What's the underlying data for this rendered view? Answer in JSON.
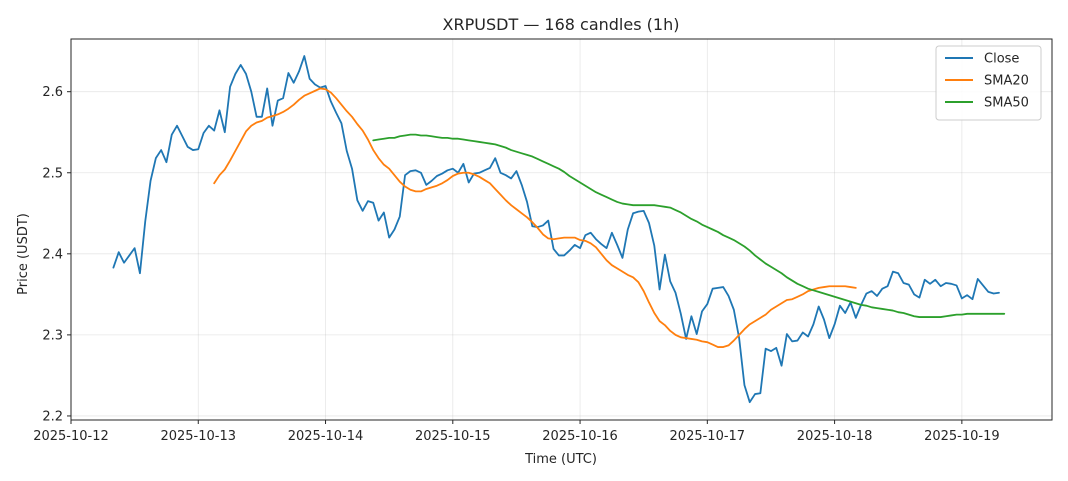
{
  "chart_data": {
    "type": "line",
    "title": "XRPUSDT — 168 candles (1h)",
    "xlabel": "Time (UTC)",
    "ylabel": "Price (USDT)",
    "x_ticks": [
      "2025-10-12",
      "2025-10-13",
      "2025-10-14",
      "2025-10-15",
      "2025-10-16",
      "2025-10-17",
      "2025-10-18",
      "2025-10-19"
    ],
    "y_ticks": [
      "2.2",
      "2.3",
      "2.4",
      "2.5",
      "2.6"
    ],
    "xlim": [
      "2025-10-12 00:00",
      "2025-10-19 17:00"
    ],
    "ylim": [
      2.195,
      2.665
    ],
    "grid": true,
    "legend_position": "top-right",
    "start_time": "2025-10-12 08:00",
    "interval_hours": 1,
    "series": [
      {
        "name": "Close",
        "color": "#1f77b4",
        "values": [
          2.383,
          2.402,
          2.389,
          2.398,
          2.407,
          2.376,
          2.44,
          2.49,
          2.518,
          2.528,
          2.513,
          2.547,
          2.558,
          2.545,
          2.532,
          2.528,
          2.529,
          2.549,
          2.558,
          2.552,
          2.577,
          2.55,
          2.606,
          2.622,
          2.633,
          2.622,
          2.6,
          2.569,
          2.569,
          2.604,
          2.558,
          2.589,
          2.592,
          2.623,
          2.611,
          2.625,
          2.644,
          2.616,
          2.609,
          2.605,
          2.607,
          2.588,
          2.574,
          2.561,
          2.527,
          2.505,
          2.466,
          2.453,
          2.465,
          2.463,
          2.441,
          2.451,
          2.42,
          2.43,
          2.446,
          2.497,
          2.502,
          2.503,
          2.5,
          2.485,
          2.49,
          2.496,
          2.499,
          2.503,
          2.505,
          2.5,
          2.511,
          2.488,
          2.499,
          2.5,
          2.503,
          2.506,
          2.518,
          2.5,
          2.497,
          2.493,
          2.502,
          2.485,
          2.464,
          2.434,
          2.433,
          2.435,
          2.441,
          2.406,
          2.398,
          2.398,
          2.404,
          2.411,
          2.407,
          2.423,
          2.426,
          2.418,
          2.412,
          2.407,
          2.426,
          2.411,
          2.395,
          2.43,
          2.45,
          2.452,
          2.453,
          2.438,
          2.41,
          2.356,
          2.399,
          2.366,
          2.352,
          2.326,
          2.295,
          2.323,
          2.301,
          2.329,
          2.338,
          2.357,
          2.358,
          2.359,
          2.348,
          2.331,
          2.296,
          2.238,
          2.217,
          2.227,
          2.228,
          2.283,
          2.28,
          2.284,
          2.262,
          2.301,
          2.292,
          2.293,
          2.303,
          2.298,
          2.313,
          2.335,
          2.319,
          2.296,
          2.313,
          2.336,
          2.327,
          2.34,
          2.321,
          2.337,
          2.351,
          2.354,
          2.348,
          2.357,
          2.36,
          2.378,
          2.376,
          2.364,
          2.362,
          2.35,
          2.346,
          2.368,
          2.363,
          2.368,
          2.36,
          2.364,
          2.363,
          2.361,
          2.345,
          2.349,
          2.344,
          2.369,
          2.361,
          2.353,
          2.351,
          2.352
        ]
      },
      {
        "name": "SMA20",
        "color": "#ff7f0e",
        "start_index": 19,
        "values": [
          2.487,
          2.497,
          2.504,
          2.515,
          2.527,
          2.539,
          2.551,
          2.558,
          2.562,
          2.564,
          2.568,
          2.57,
          2.572,
          2.575,
          2.579,
          2.584,
          2.59,
          2.595,
          2.598,
          2.601,
          2.604,
          2.603,
          2.599,
          2.592,
          2.584,
          2.576,
          2.569,
          2.56,
          2.552,
          2.541,
          2.528,
          2.518,
          2.51,
          2.505,
          2.497,
          2.489,
          2.483,
          2.479,
          2.477,
          2.477,
          2.48,
          2.482,
          2.484,
          2.487,
          2.491,
          2.496,
          2.499,
          2.5,
          2.5,
          2.498,
          2.495,
          2.491,
          2.487,
          2.48,
          2.473,
          2.466,
          2.46,
          2.455,
          2.45,
          2.445,
          2.439,
          2.432,
          2.424,
          2.419,
          2.418,
          2.419,
          2.42,
          2.42,
          2.42,
          2.417,
          2.416,
          2.413,
          2.408,
          2.4,
          2.392,
          2.386,
          2.382,
          2.378,
          2.374,
          2.371,
          2.365,
          2.354,
          2.34,
          2.327,
          2.317,
          2.312,
          2.305,
          2.3,
          2.297,
          2.296,
          2.295,
          2.294,
          2.292,
          2.291,
          2.288,
          2.285,
          2.285,
          2.287,
          2.293,
          2.3,
          2.307,
          2.313,
          2.317,
          2.321,
          2.325,
          2.331,
          2.335,
          2.339,
          2.343,
          2.344,
          2.347,
          2.35,
          2.354,
          2.356,
          2.358,
          2.359,
          2.36,
          2.36,
          2.36,
          2.36,
          2.359,
          2.358
        ]
      },
      {
        "name": "SMA50",
        "color": "#2ca02c",
        "start_index": 49,
        "values": [
          2.54,
          2.541,
          2.542,
          2.543,
          2.543,
          2.545,
          2.546,
          2.547,
          2.547,
          2.546,
          2.546,
          2.545,
          2.544,
          2.543,
          2.543,
          2.542,
          2.542,
          2.541,
          2.54,
          2.539,
          2.538,
          2.537,
          2.536,
          2.535,
          2.533,
          2.531,
          2.528,
          2.526,
          2.524,
          2.522,
          2.52,
          2.517,
          2.514,
          2.511,
          2.508,
          2.505,
          2.501,
          2.496,
          2.492,
          2.488,
          2.484,
          2.48,
          2.476,
          2.473,
          2.47,
          2.467,
          2.464,
          2.462,
          2.461,
          2.46,
          2.46,
          2.46,
          2.46,
          2.46,
          2.459,
          2.458,
          2.457,
          2.454,
          2.451,
          2.447,
          2.443,
          2.44,
          2.436,
          2.433,
          2.43,
          2.427,
          2.423,
          2.42,
          2.417,
          2.413,
          2.409,
          2.404,
          2.398,
          2.393,
          2.388,
          2.384,
          2.38,
          2.376,
          2.371,
          2.367,
          2.363,
          2.36,
          2.357,
          2.355,
          2.353,
          2.351,
          2.349,
          2.347,
          2.345,
          2.343,
          2.341,
          2.339,
          2.337,
          2.336,
          2.334,
          2.333,
          2.332,
          2.331,
          2.33,
          2.328,
          2.327,
          2.325,
          2.323,
          2.322,
          2.322,
          2.322,
          2.322,
          2.322,
          2.323,
          2.324,
          2.325,
          2.325,
          2.326,
          2.326,
          2.326,
          2.326,
          2.326,
          2.326,
          2.326,
          2.326
        ]
      }
    ]
  }
}
